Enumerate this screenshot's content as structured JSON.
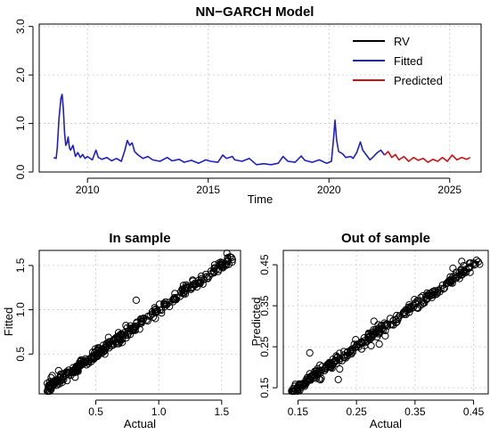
{
  "colors": {
    "rv": "#000000",
    "fitted": "#1f1fc8",
    "predicted": "#d01010"
  },
  "chart_data": [
    {
      "type": "line",
      "title": "NN−GARCH Model",
      "xlabel": "Time",
      "ylabel": "",
      "xlim": [
        2008.0,
        2026.3
      ],
      "ylim": [
        0.0,
        3.05
      ],
      "xticks": [
        2010,
        2015,
        2020,
        2025
      ],
      "xtick_labels": [
        "2010",
        "2015",
        "2020",
        "2025"
      ],
      "yticks": [
        0.0,
        1.0,
        2.0,
        3.0
      ],
      "ytick_labels": [
        "0.0",
        "1.0",
        "2.0",
        "3.0"
      ],
      "grid": true,
      "legend_position": "top-right",
      "legend": [
        "RV",
        "Fitted",
        "Predicted"
      ],
      "series": [
        {
          "name": "Fitted",
          "color": "fitted",
          "points": [
            [
              2008.6,
              0.3
            ],
            [
              2008.7,
              0.28
            ],
            [
              2008.75,
              0.5
            ],
            [
              2008.82,
              1.1
            ],
            [
              2008.9,
              1.52
            ],
            [
              2008.95,
              1.6
            ],
            [
              2009.0,
              1.3
            ],
            [
              2009.05,
              0.8
            ],
            [
              2009.1,
              0.55
            ],
            [
              2009.15,
              0.6
            ],
            [
              2009.2,
              0.72
            ],
            [
              2009.25,
              0.5
            ],
            [
              2009.3,
              0.45
            ],
            [
              2009.4,
              0.55
            ],
            [
              2009.5,
              0.32
            ],
            [
              2009.6,
              0.4
            ],
            [
              2009.7,
              0.3
            ],
            [
              2009.8,
              0.36
            ],
            [
              2009.9,
              0.28
            ],
            [
              2010.0,
              0.32
            ],
            [
              2010.2,
              0.25
            ],
            [
              2010.35,
              0.45
            ],
            [
              2010.45,
              0.3
            ],
            [
              2010.6,
              0.26
            ],
            [
              2010.8,
              0.3
            ],
            [
              2011.0,
              0.23
            ],
            [
              2011.2,
              0.28
            ],
            [
              2011.4,
              0.22
            ],
            [
              2011.55,
              0.45
            ],
            [
              2011.65,
              0.65
            ],
            [
              2011.75,
              0.55
            ],
            [
              2011.85,
              0.6
            ],
            [
              2011.95,
              0.42
            ],
            [
              2012.1,
              0.35
            ],
            [
              2012.3,
              0.28
            ],
            [
              2012.5,
              0.32
            ],
            [
              2012.7,
              0.25
            ],
            [
              2013.0,
              0.22
            ],
            [
              2013.3,
              0.3
            ],
            [
              2013.5,
              0.23
            ],
            [
              2013.8,
              0.26
            ],
            [
              2014.0,
              0.2
            ],
            [
              2014.3,
              0.24
            ],
            [
              2014.6,
              0.18
            ],
            [
              2014.9,
              0.25
            ],
            [
              2015.1,
              0.22
            ],
            [
              2015.4,
              0.2
            ],
            [
              2015.6,
              0.35
            ],
            [
              2015.75,
              0.28
            ],
            [
              2016.0,
              0.32
            ],
            [
              2016.1,
              0.25
            ],
            [
              2016.4,
              0.22
            ],
            [
              2016.7,
              0.28
            ],
            [
              2017.0,
              0.15
            ],
            [
              2017.3,
              0.17
            ],
            [
              2017.6,
              0.15
            ],
            [
              2017.9,
              0.18
            ],
            [
              2018.1,
              0.32
            ],
            [
              2018.3,
              0.22
            ],
            [
              2018.6,
              0.2
            ],
            [
              2018.85,
              0.33
            ],
            [
              2019.0,
              0.24
            ],
            [
              2019.3,
              0.2
            ],
            [
              2019.6,
              0.25
            ],
            [
              2019.9,
              0.18
            ],
            [
              2020.1,
              0.22
            ],
            [
              2020.2,
              0.75
            ],
            [
              2020.25,
              1.07
            ],
            [
              2020.32,
              0.65
            ],
            [
              2020.4,
              0.42
            ],
            [
              2020.55,
              0.38
            ],
            [
              2020.7,
              0.3
            ],
            [
              2020.9,
              0.32
            ],
            [
              2021.0,
              0.28
            ],
            [
              2021.15,
              0.4
            ],
            [
              2021.3,
              0.62
            ],
            [
              2021.4,
              0.45
            ],
            [
              2021.55,
              0.35
            ],
            [
              2021.7,
              0.25
            ],
            [
              2021.85,
              0.32
            ],
            [
              2022.0,
              0.4
            ],
            [
              2022.15,
              0.45
            ],
            [
              2022.3,
              0.35
            ]
          ]
        },
        {
          "name": "Predicted",
          "color": "predicted",
          "points": [
            [
              2022.3,
              0.35
            ],
            [
              2022.45,
              0.42
            ],
            [
              2022.6,
              0.3
            ],
            [
              2022.75,
              0.36
            ],
            [
              2022.9,
              0.25
            ],
            [
              2023.1,
              0.32
            ],
            [
              2023.3,
              0.22
            ],
            [
              2023.5,
              0.3
            ],
            [
              2023.7,
              0.24
            ],
            [
              2023.9,
              0.28
            ],
            [
              2024.1,
              0.2
            ],
            [
              2024.3,
              0.26
            ],
            [
              2024.5,
              0.22
            ],
            [
              2024.7,
              0.3
            ],
            [
              2024.9,
              0.22
            ],
            [
              2025.1,
              0.35
            ],
            [
              2025.3,
              0.25
            ],
            [
              2025.5,
              0.3
            ],
            [
              2025.7,
              0.26
            ],
            [
              2025.85,
              0.3
            ]
          ]
        }
      ]
    },
    {
      "type": "scatter",
      "title": "In sample",
      "xlabel": "Actual",
      "ylabel": "Fitted",
      "xlim": [
        0.05,
        1.65
      ],
      "ylim": [
        0.05,
        1.67
      ],
      "xticks": [
        0.5,
        1.0,
        1.5
      ],
      "xtick_labels": [
        "0.5",
        "1.0",
        "1.5"
      ],
      "yticks": [
        0.5,
        1.0,
        1.5
      ],
      "ytick_labels": [
        "0.5",
        "1.0",
        "1.5"
      ],
      "grid": true,
      "slope": 1.0,
      "n_points": 360,
      "seed": 11
    },
    {
      "type": "scatter",
      "title": "Out of sample",
      "xlabel": "Actual",
      "ylabel": "Predicted",
      "xlim": [
        0.125,
        0.475
      ],
      "ylim": [
        0.135,
        0.485
      ],
      "xticks": [
        0.15,
        0.25,
        0.35,
        0.45
      ],
      "xtick_labels": [
        "0.15",
        "0.25",
        "0.35",
        "0.45"
      ],
      "yticks": [
        0.15,
        0.25,
        0.35,
        0.45
      ],
      "ytick_labels": [
        "0.15",
        "0.25",
        "0.35",
        "0.45"
      ],
      "grid": true,
      "slope": 1.0,
      "n_points": 320,
      "seed": 29
    }
  ]
}
